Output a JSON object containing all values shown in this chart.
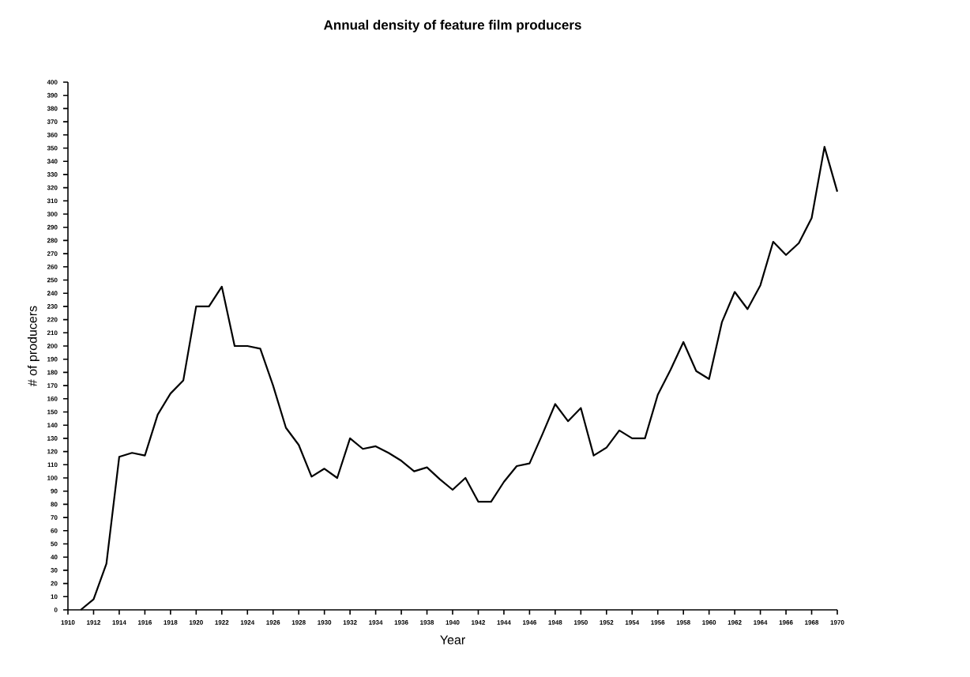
{
  "chart_data": {
    "type": "line",
    "title": "Annual density of feature film producers",
    "xlabel": "Year",
    "ylabel": "# of producers",
    "x": [
      1911,
      1912,
      1913,
      1914,
      1915,
      1916,
      1917,
      1918,
      1919,
      1920,
      1921,
      1922,
      1923,
      1924,
      1925,
      1926,
      1927,
      1928,
      1929,
      1930,
      1931,
      1932,
      1933,
      1934,
      1935,
      1936,
      1937,
      1938,
      1939,
      1940,
      1941,
      1942,
      1943,
      1944,
      1945,
      1946,
      1947,
      1948,
      1949,
      1950,
      1951,
      1952,
      1953,
      1954,
      1955,
      1956,
      1957,
      1958,
      1959,
      1960,
      1961,
      1962,
      1963,
      1964,
      1965,
      1966,
      1967,
      1968,
      1969,
      1970
    ],
    "series": [
      {
        "color": "#000000",
        "values": [
          0,
          8,
          35,
          116,
          119,
          117,
          148,
          164,
          174,
          230,
          230,
          245,
          200,
          200,
          198,
          170,
          138,
          125,
          101,
          107,
          100,
          130,
          122,
          124,
          119,
          113,
          105,
          108,
          99,
          91,
          100,
          82,
          82,
          97,
          109,
          111,
          133,
          156,
          143,
          153,
          117,
          123,
          136,
          130,
          130,
          163,
          182,
          203,
          181,
          175,
          218,
          241,
          228,
          246,
          279,
          269,
          278,
          297,
          351,
          317
        ]
      }
    ],
    "xlim": [
      1910,
      1970
    ],
    "xticks": [
      1910,
      1912,
      1914,
      1916,
      1918,
      1920,
      1922,
      1924,
      1926,
      1928,
      1930,
      1932,
      1934,
      1936,
      1938,
      1940,
      1942,
      1944,
      1946,
      1948,
      1950,
      1952,
      1954,
      1956,
      1958,
      1960,
      1962,
      1964,
      1966,
      1968,
      1970
    ],
    "ylim": [
      0,
      400
    ],
    "yticks": [
      0,
      10,
      20,
      30,
      40,
      50,
      60,
      70,
      80,
      90,
      100,
      110,
      120,
      130,
      140,
      150,
      160,
      170,
      180,
      190,
      200,
      210,
      220,
      230,
      240,
      250,
      260,
      270,
      280,
      290,
      300,
      310,
      320,
      330,
      340,
      350,
      360,
      370,
      380,
      390,
      400
    ],
    "grid": false,
    "legend": false,
    "marker": "none",
    "line_style": "solid"
  }
}
